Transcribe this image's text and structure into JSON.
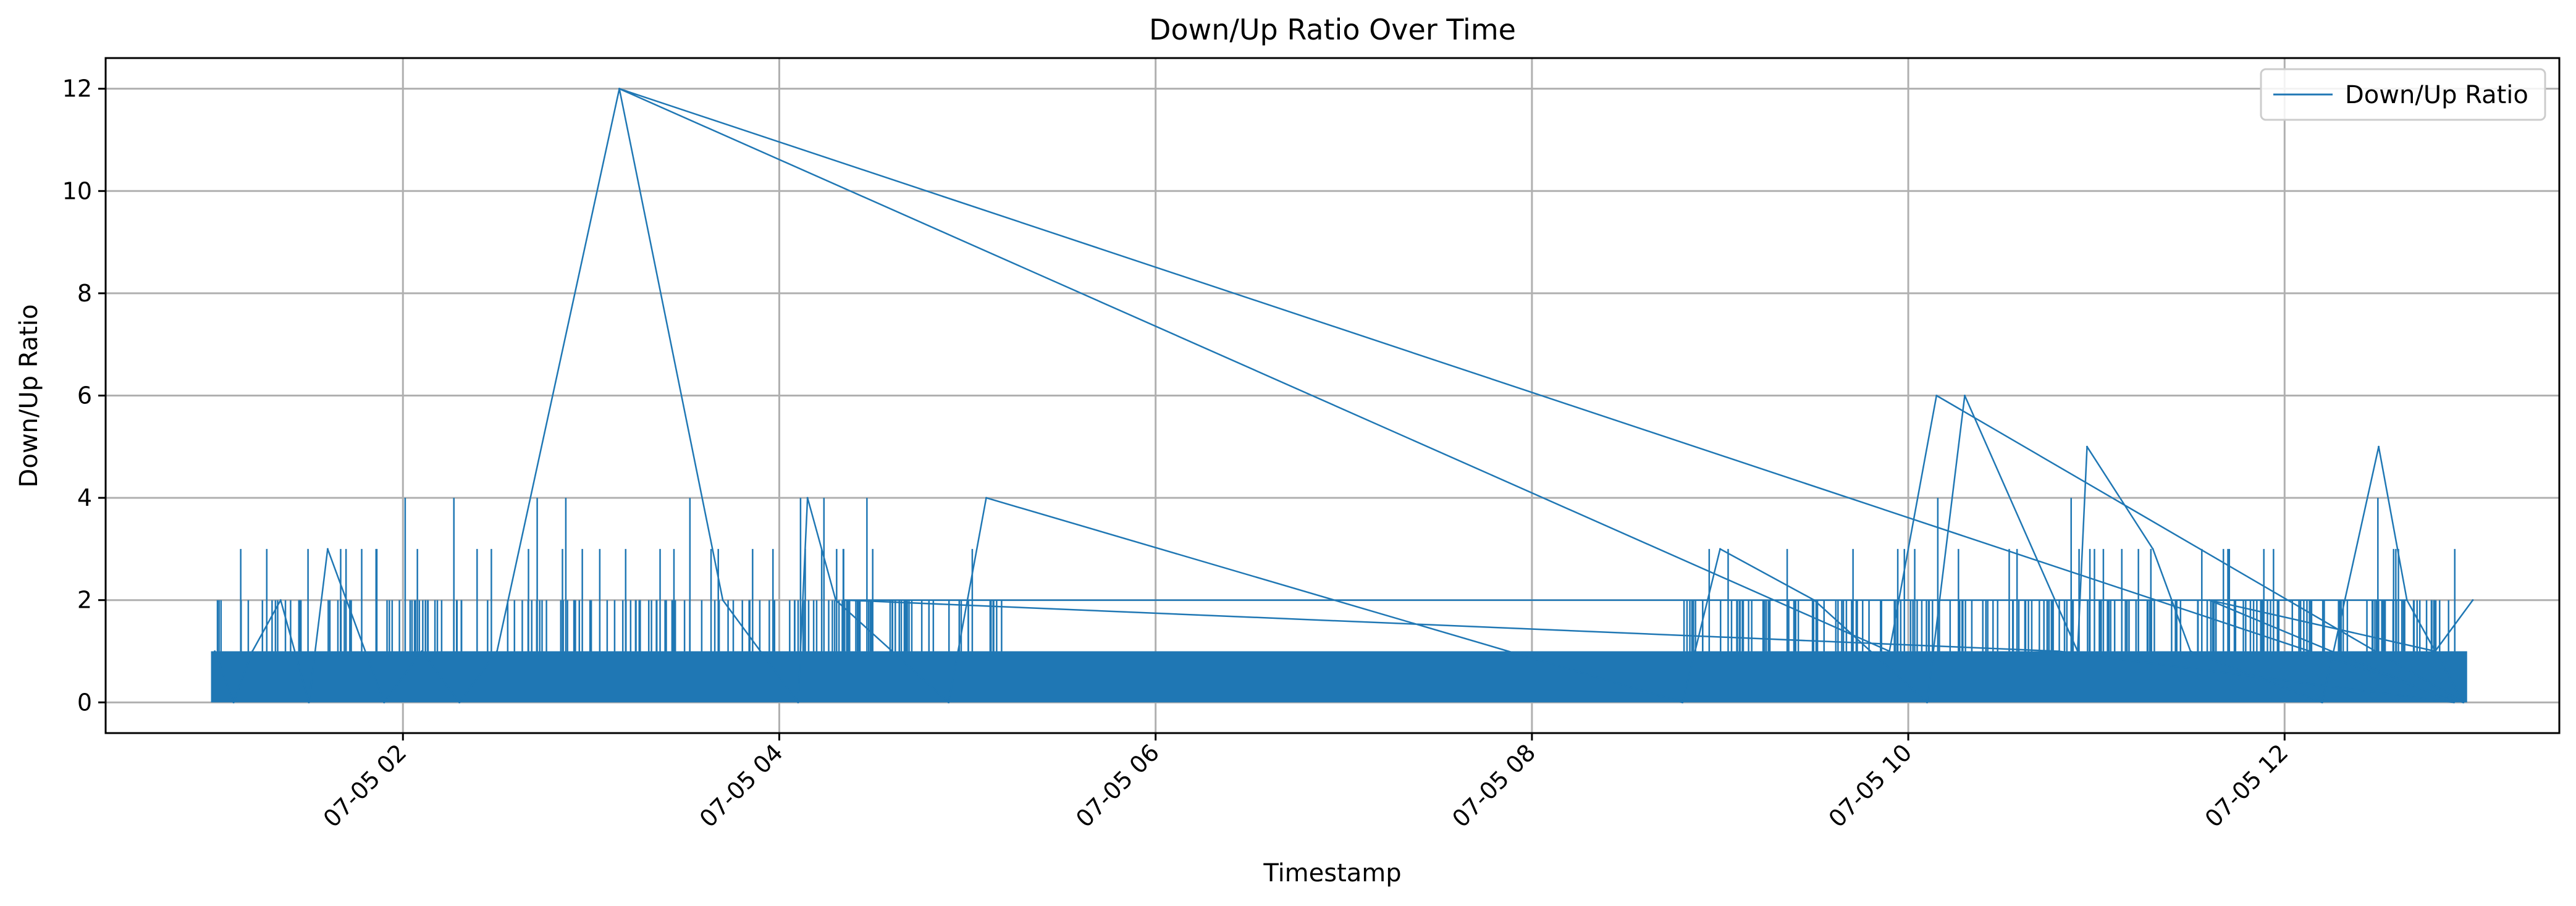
{
  "chart_data": {
    "type": "line",
    "title": "Down/Up Ratio Over Time",
    "xlabel": "Timestamp",
    "ylabel": "Down/Up Ratio",
    "x_tick_labels": [
      "07-05 02",
      "07-05 04",
      "07-05 06",
      "07-05 08",
      "07-05 10",
      "07-05 12"
    ],
    "x_ticks_hours": [
      2,
      4,
      6,
      8,
      10,
      12
    ],
    "xlim_hours": [
      0.42,
      13.46
    ],
    "x_axis_date": "07-05",
    "y_tick_labels": [
      "0",
      "2",
      "4",
      "6",
      "8",
      "10",
      "12"
    ],
    "y_ticks": [
      0,
      2,
      4,
      6,
      8,
      10,
      12
    ],
    "ylim": [
      -0.6,
      12.6
    ],
    "grid": true,
    "legend": {
      "position": "top-right",
      "entries": [
        "Down/Up Ratio"
      ]
    },
    "colors": {
      "series": "#1f77b4",
      "grid": "#b0b0b0",
      "axes": "#000000"
    },
    "series": [
      {
        "name": "Down/Up Ratio",
        "x_hours": [
          1.0,
          1.1,
          1.2,
          1.35,
          1.5,
          1.6,
          1.9,
          2.1,
          2.3,
          2.5,
          3.15,
          3.7,
          4.1,
          4.15,
          4.3,
          4.9,
          5.1,
          8.8,
          9.0,
          9.5,
          10.1,
          10.3,
          10.9,
          10.95,
          11.3,
          11.5,
          12.2,
          12.5,
          12.65,
          12.95,
          3.15,
          9.9,
          10.15,
          12.95,
          12.65,
          4.35,
          10.8,
          12.9,
          11.6,
          12.8,
          13.0
        ],
        "values": [
          1,
          0,
          1,
          2,
          0,
          3,
          0,
          1,
          0,
          1,
          12,
          2,
          0,
          4,
          2,
          0,
          4,
          0,
          3,
          2,
          0,
          6,
          1,
          5,
          3,
          1,
          0,
          5,
          2,
          0,
          12,
          1,
          6,
          0,
          2,
          2,
          1,
          0,
          2,
          1,
          2
        ]
      }
    ]
  }
}
